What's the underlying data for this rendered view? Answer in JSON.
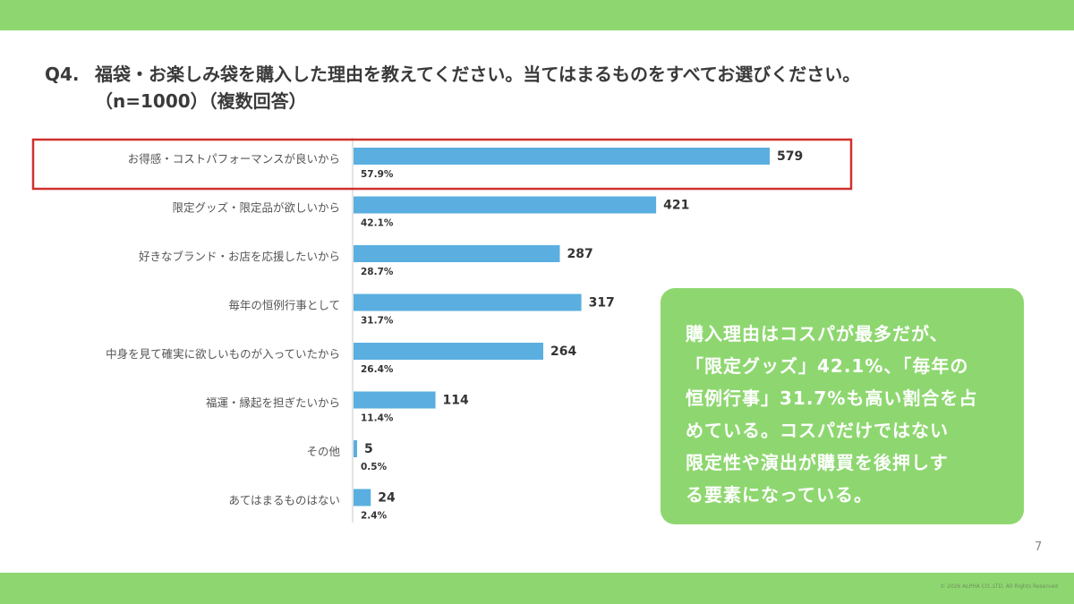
{
  "header": {
    "question_no": "Q4.",
    "title_line1": "福袋・お楽しみ袋を購入した理由を教えてください。当てはまるものをすべてお選びください。",
    "title_line2": "（n=1000）（複数回答）"
  },
  "chart_data": {
    "type": "bar",
    "orientation": "horizontal",
    "categories": [
      "お得感・コストパフォーマンスが良いから",
      "限定グッズ・限定品が欲しいから",
      "好きなブランド・お店を応援したいから",
      "毎年の恒例行事として",
      "中身を見て確実に欲しいものが入っていたから",
      "福運・縁起を担ぎたいから",
      "その他",
      "あてはまるものはない"
    ],
    "values": [
      579,
      421,
      287,
      317,
      264,
      114,
      5,
      24
    ],
    "percent_labels": [
      "57.9%",
      "42.1%",
      "28.7%",
      "31.7%",
      "26.4%",
      "11.4%",
      "0.5%",
      "2.4%"
    ],
    "highlight_index": 0,
    "bar_color": "#5aafe0",
    "highlight_color": "#d0312d",
    "grid": false
  },
  "summary": {
    "lines": [
      "購入理由はコスパが最多だが、",
      "「限定グッズ」42.1%、「毎年の",
      "恒例行事」31.7%も高い割合を占",
      "めている。コスパだけではない",
      "限定性や演出が購買を後押しす",
      "る要素になっている。"
    ]
  },
  "footer": {
    "page_number": "7",
    "copyright": "© 2026 ALPHA CO.,LTD. All Rights Reserved"
  },
  "theme": {
    "accent_green": "#8ed770"
  }
}
